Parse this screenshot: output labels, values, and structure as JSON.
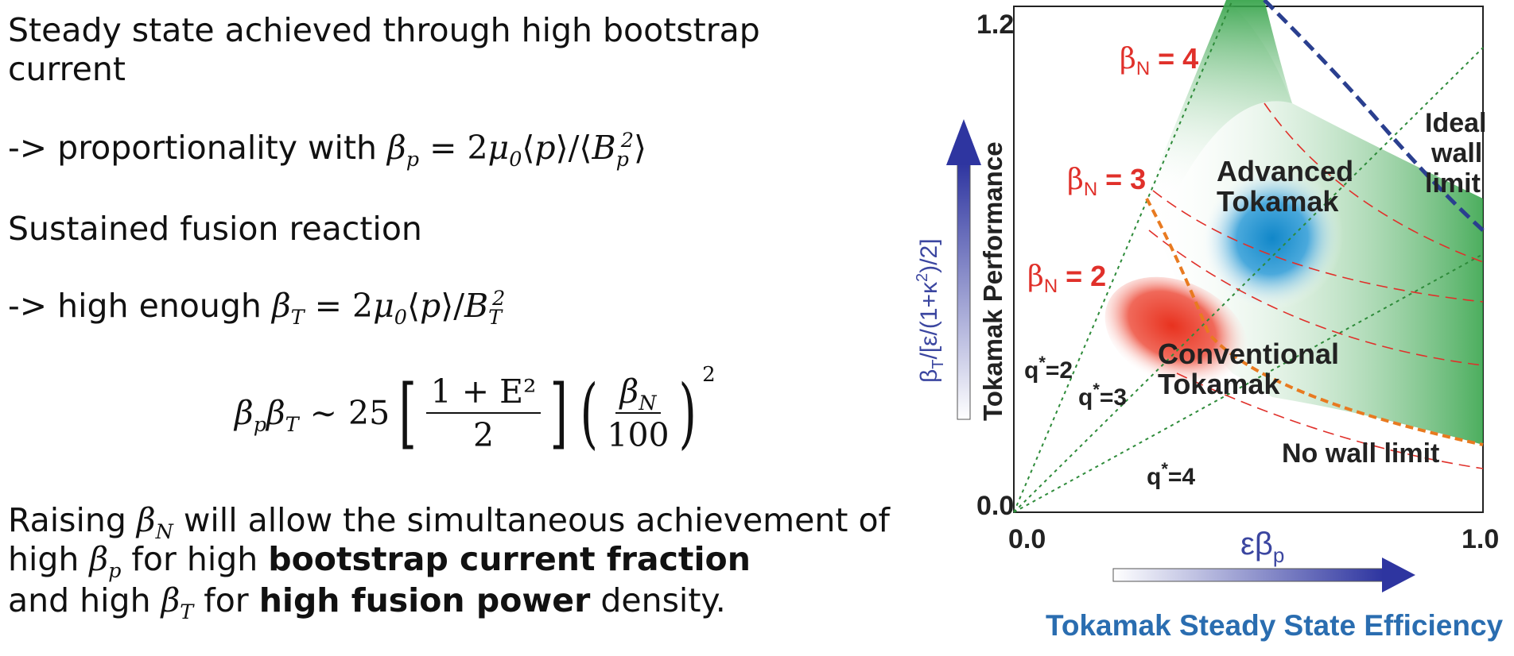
{
  "text": {
    "line1a": "Steady state achieved through high bootstrap",
    "line1b": "current",
    "line2_prefix": "-> proportionality with ",
    "line3": "Sustained fusion reaction",
    "line4_prefix": "-> high enough ",
    "para_a1": "Raising ",
    "para_a2": " will allow the simultaneous achievement of",
    "para_b1": "high ",
    "para_b2": " for high ",
    "para_b3": "bootstrap current fraction",
    "para_c1": "and high ",
    "para_c2": " for ",
    "para_c3": "high fusion power",
    "para_c4": " density."
  },
  "equation": {
    "coefficient": "25",
    "numerator": "1 + E²",
    "denominator": "2",
    "frac2_num": "β",
    "frac2_num_sub": "N",
    "frac2_den": "100",
    "power": "2"
  },
  "figure": {
    "y_tick_top": "1.2",
    "y_tick_bottom": "0.0",
    "x_tick_left": "0.0",
    "x_tick_right": "1.0",
    "xlabel_main": "εβ",
    "xlabel_sub": "p",
    "ylabel_beta": "β",
    "ylabel_sub": "T",
    "ylabel_rest": "/[ε/(1+κ",
    "ylabel_sup": "2",
    "ylabel_end": ")/2]",
    "y_arrow_label": "Tokamak Performance",
    "x_arrow_label": "Tokamak Steady State Efficiency",
    "beta_n_labels": [
      "β",
      "N",
      " = 4",
      " = 3",
      " = 2"
    ],
    "q_labels": [
      "q",
      "*",
      "=2",
      "=3",
      "=4"
    ],
    "region_advanced": [
      "Advanced",
      "Tokamak"
    ],
    "region_conventional": [
      "Conventional",
      "Tokamak"
    ],
    "ideal_wall": [
      "Ideal",
      "wall",
      "limit"
    ],
    "no_wall": "No wall limit",
    "colors": {
      "green": "#2ea043",
      "red_line": "#e0302a",
      "orange_line": "#e87a20",
      "blue_dash": "#2a3f8f",
      "arrow_blue": "#2e35a0",
      "title_blue": "#2a6db0"
    }
  }
}
